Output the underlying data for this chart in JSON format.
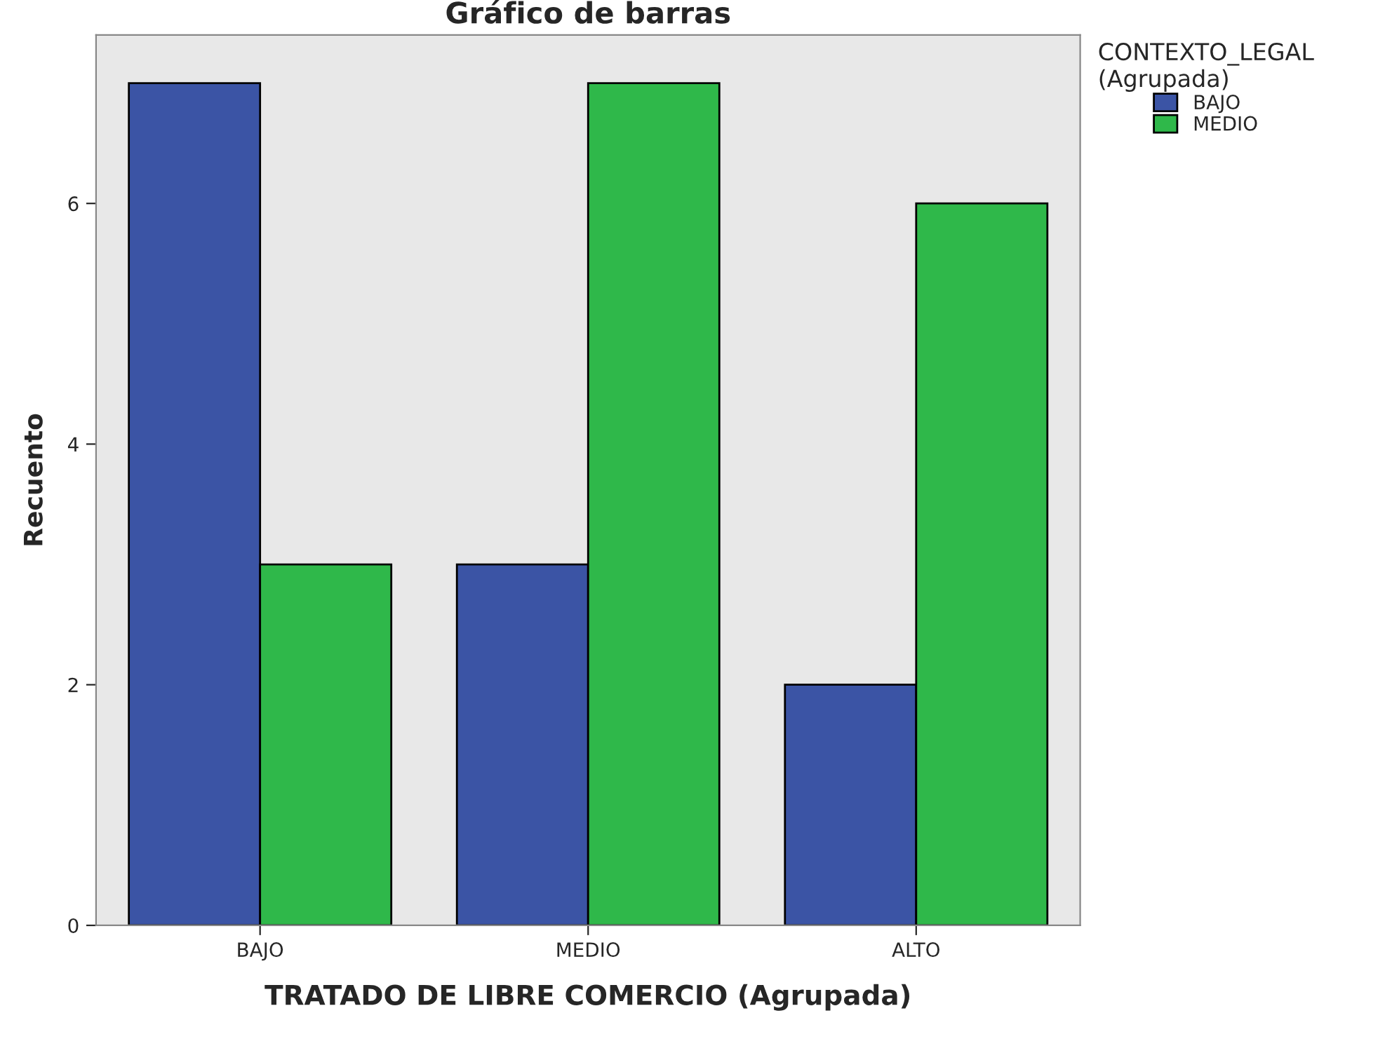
{
  "chart_data": {
    "type": "bar",
    "title": "Gráfico de barras",
    "xlabel": "TRATADO DE LIBRE COMERCIO (Agrupada)",
    "ylabel": "Recuento",
    "legend_title": "CONTEXTO_LEGAL\n(Agrupada)",
    "categories": [
      "BAJO",
      "MEDIO",
      "ALTO"
    ],
    "series": [
      {
        "name": "BAJO",
        "color": "#3b54a5",
        "values": [
          7,
          3,
          2
        ]
      },
      {
        "name": "MEDIO",
        "color": "#2fb84a",
        "values": [
          3,
          7,
          6
        ]
      }
    ],
    "ylim": [
      0,
      7.4
    ],
    "yticks": [
      0,
      2,
      4,
      6
    ],
    "grid": false,
    "legend": "top right"
  }
}
